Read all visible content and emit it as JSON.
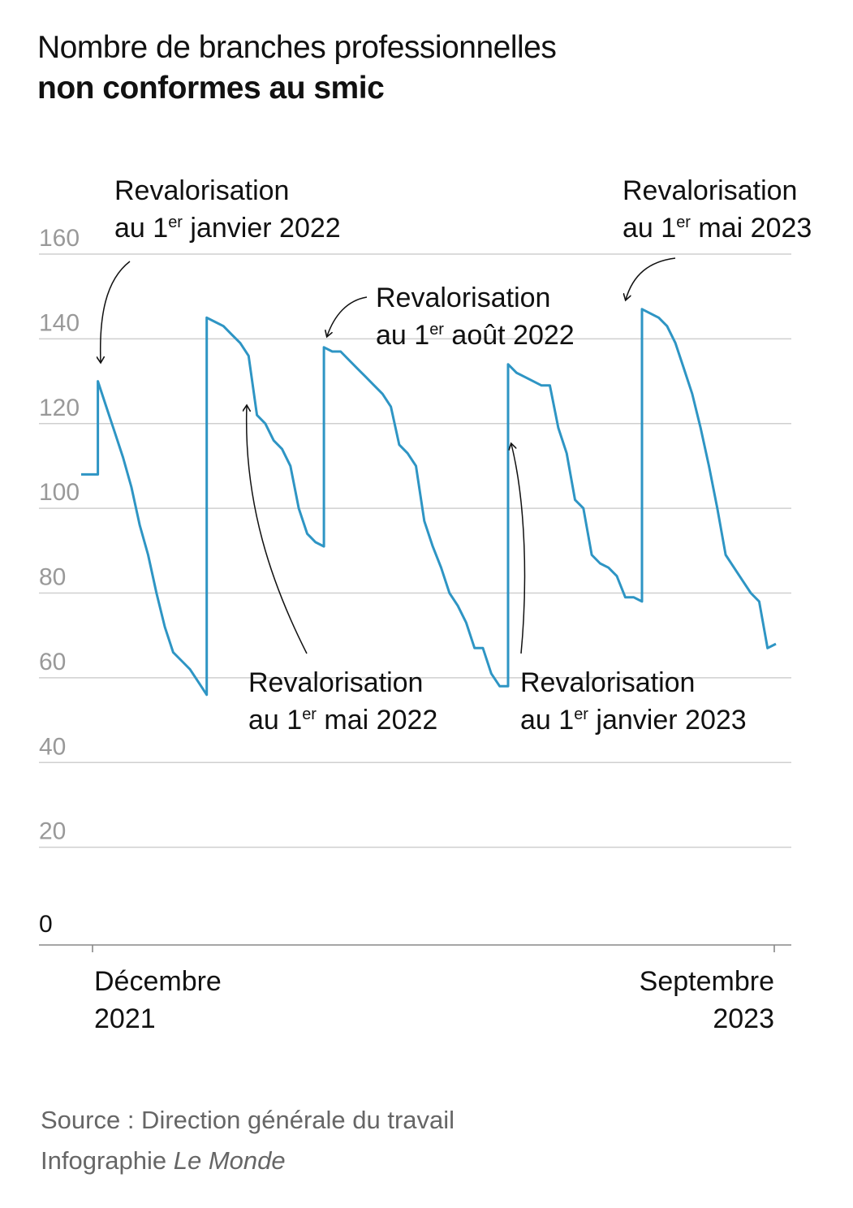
{
  "title": {
    "line1": "Nombre de branches professionnelles",
    "line2": "non conformes au smic"
  },
  "chart_data": {
    "type": "line",
    "xlabel": "",
    "ylabel": "",
    "ylim": [
      0,
      160
    ],
    "yticks": [
      0,
      20,
      40,
      60,
      80,
      100,
      120,
      140,
      160
    ],
    "grid": true,
    "x_range": [
      "Décembre 2021",
      "Septembre 2023"
    ],
    "xtick_labels": [
      {
        "line1": "Décembre",
        "line2": "2021"
      },
      {
        "line1": "Septembre",
        "line2": "2023"
      }
    ],
    "series": [
      {
        "color": "#2e95c4",
        "values": [
          108,
          108,
          108,
          130,
          124,
          118,
          112,
          105,
          96,
          89,
          80,
          72,
          66,
          64,
          62,
          59,
          56,
          145,
          144,
          143,
          141,
          139,
          136,
          122,
          120,
          116,
          114,
          110,
          100,
          94,
          92,
          91,
          138,
          137,
          137,
          135,
          133,
          131,
          129,
          127,
          124,
          115,
          113,
          110,
          97,
          91,
          86,
          80,
          77,
          73,
          67,
          67,
          61,
          58,
          58,
          134,
          132,
          131,
          130,
          129,
          129,
          119,
          113,
          102,
          100,
          89,
          87,
          86,
          84,
          79,
          79,
          78,
          147,
          146,
          145,
          143,
          139,
          133,
          127,
          119,
          110,
          100,
          89,
          86,
          83,
          80,
          78,
          67,
          68
        ]
      }
    ],
    "annotations": [
      {
        "line1": "Revalorisation",
        "line2_a": "au 1",
        "sup": "er",
        "line2_b": " janvier 2022"
      },
      {
        "line1": "Revalorisation",
        "line2_a": "au 1",
        "sup": "er",
        "line2_b": " mai 2022"
      },
      {
        "line1": "Revalorisation",
        "line2_a": "au 1",
        "sup": "er",
        "line2_b": " août 2022"
      },
      {
        "line1": "Revalorisation",
        "line2_a": "au 1",
        "sup": "er",
        "line2_b": " janvier 2023"
      },
      {
        "line1": "Revalorisation",
        "line2_a": "au 1",
        "sup": "er",
        "line2_b": " mai 2023"
      }
    ]
  },
  "credits": {
    "source": "Source : Direction générale du travail",
    "prefix": "Infographie ",
    "publisher": "Le Monde"
  }
}
